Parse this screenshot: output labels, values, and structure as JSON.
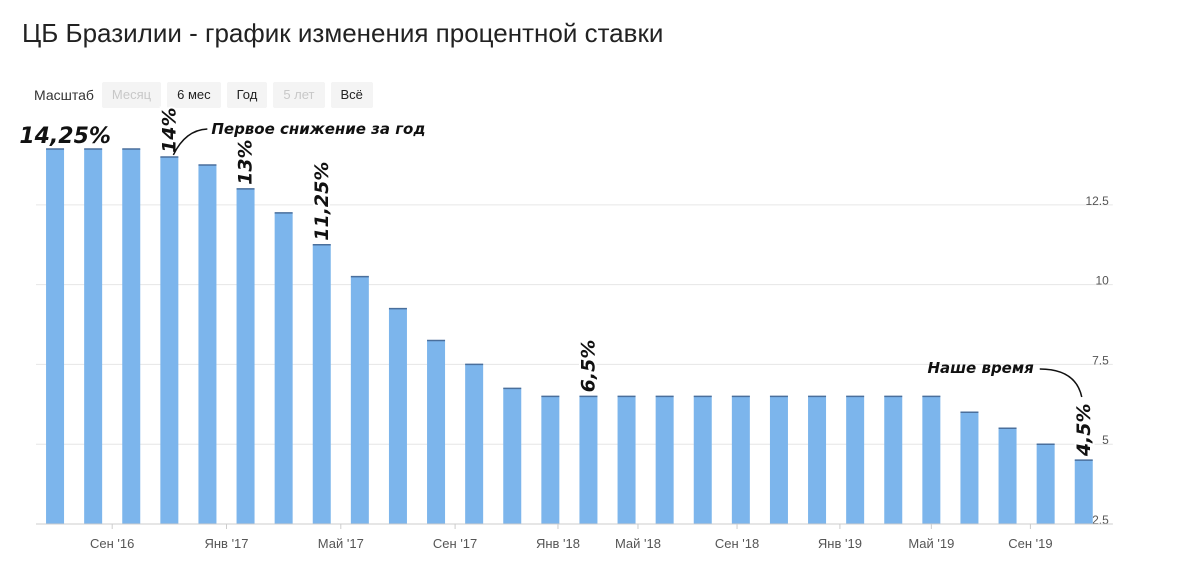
{
  "page": {
    "title": "ЦБ Бразилии - график изменения процентной ставки"
  },
  "zoom": {
    "label": "Масштаб",
    "buttons": [
      {
        "label": "Месяц",
        "enabled": false
      },
      {
        "label": "6 мес",
        "enabled": true
      },
      {
        "label": "Год",
        "enabled": true
      },
      {
        "label": "5 лет",
        "enabled": false
      },
      {
        "label": "Всё",
        "enabled": true
      }
    ]
  },
  "colors": {
    "bar": "#7cb5ec",
    "bar_top": "#4a6f9c",
    "grid": "#e6e6e6",
    "axis_text": "#555555",
    "annotation": "#111111"
  },
  "chart_data": {
    "type": "bar",
    "title": "ЦБ Бразилии - график изменения процентной ставки",
    "xlabel": "",
    "ylabel": "",
    "ylim": [
      2.5,
      14.25
    ],
    "y_ticks": [
      "2.5",
      "5",
      "7.5",
      "10",
      "12.5"
    ],
    "y_tick_values": [
      2.5,
      5,
      7.5,
      10,
      12.5
    ],
    "x_ticks": [
      "Сен '16",
      "Янв '17",
      "Май '17",
      "Сен '17",
      "Янв '18",
      "Май '18",
      "Сен '18",
      "Янв '19",
      "Май '19",
      "Сен '19"
    ],
    "x_tick_after_bar": [
      2,
      5,
      8,
      11,
      13.7,
      15.8,
      18.4,
      21.1,
      23.5,
      26.1
    ],
    "grid": true,
    "values": [
      14.25,
      14.25,
      14.25,
      14,
      13.75,
      13,
      12.25,
      11.25,
      10.25,
      9.25,
      8.25,
      7.5,
      6.75,
      6.5,
      6.5,
      6.5,
      6.5,
      6.5,
      6.5,
      6.5,
      6.5,
      6.5,
      6.5,
      6.5,
      6,
      5.5,
      5,
      4.5
    ],
    "annotations": [
      {
        "text": "14,25%",
        "bar": 1
      },
      {
        "text": "14%",
        "bar": 3
      },
      {
        "text": "13%",
        "bar": 5
      },
      {
        "text": "11,25%",
        "bar": 7
      },
      {
        "text": "6,5%",
        "bar": 14
      },
      {
        "text": "4,5%",
        "bar": 27
      }
    ],
    "callouts": [
      {
        "text": "Первое снижение за год",
        "bar": 3
      },
      {
        "text": "Наше время",
        "bar": 27
      }
    ]
  }
}
